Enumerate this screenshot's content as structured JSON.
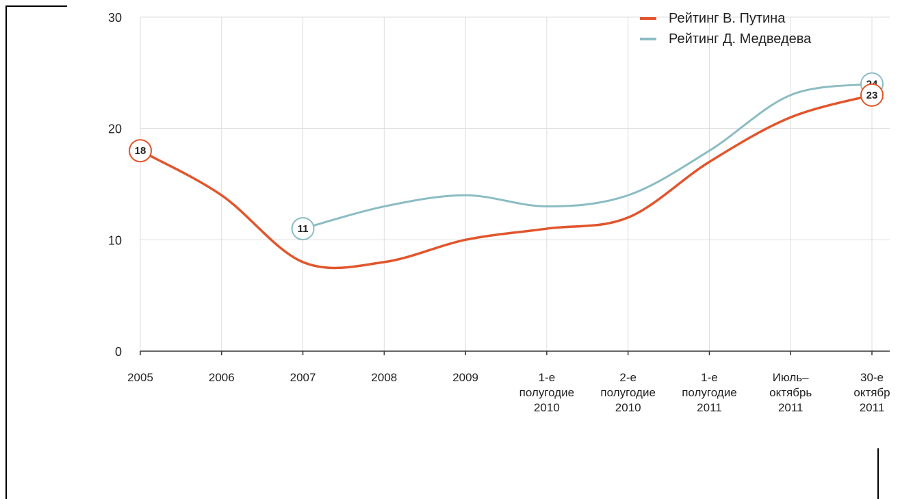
{
  "colors": {
    "putin": "#e2552c",
    "medvedev": "#8bbcc3",
    "grid": "#dcdcdc",
    "axis": "#333333"
  },
  "chart_data": {
    "type": "line",
    "categories": [
      [
        "2005"
      ],
      [
        "2006"
      ],
      [
        "2007"
      ],
      [
        "2008"
      ],
      [
        "2009"
      ],
      [
        "1-е",
        "полугодие",
        "2010"
      ],
      [
        "2-е",
        "полугодие",
        "2010"
      ],
      [
        "1-е",
        "полугодие",
        "2011"
      ],
      [
        "Июль–",
        "октябрь",
        "2011"
      ],
      [
        "30-е",
        "октябр",
        "2011"
      ]
    ],
    "series": [
      {
        "name": "Рейтинг В. Путина",
        "color": "#e2552c",
        "values": [
          18,
          14,
          8,
          8,
          10,
          11,
          12,
          17,
          21,
          23
        ]
      },
      {
        "name": "Рейтинг Д. Медведева",
        "color": "#8bbcc3",
        "values": [
          null,
          null,
          11,
          13,
          14,
          13,
          14,
          18,
          23,
          24
        ]
      }
    ],
    "callouts": [
      {
        "series": 0,
        "index": 0,
        "label": "18"
      },
      {
        "series": 1,
        "index": 2,
        "label": "11"
      },
      {
        "series": 1,
        "index": 9,
        "label": "24"
      },
      {
        "series": 0,
        "index": 9,
        "label": "23"
      }
    ],
    "yticks": [
      "0",
      "10",
      "20",
      "30"
    ],
    "ylim": [
      0,
      30
    ],
    "grid": true,
    "legend_position": "top-right"
  }
}
